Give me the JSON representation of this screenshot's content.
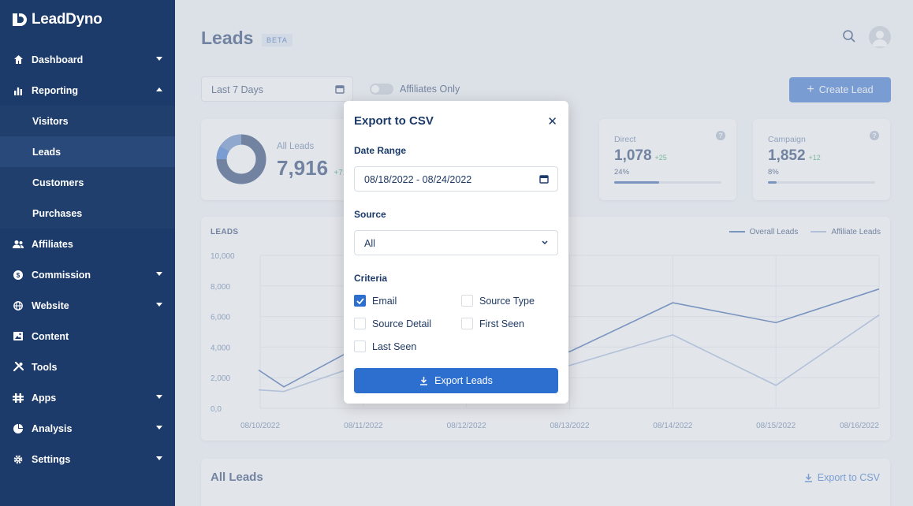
{
  "app": {
    "name": "LeadDyno"
  },
  "sidebar": {
    "items": [
      {
        "label": "Dashboard",
        "icon": "home-icon"
      },
      {
        "label": "Reporting",
        "icon": "bar-chart-icon"
      },
      {
        "label": "Affiliates",
        "icon": "users-icon"
      },
      {
        "label": "Commission",
        "icon": "dollar-icon"
      },
      {
        "label": "Website",
        "icon": "globe-icon"
      },
      {
        "label": "Content",
        "icon": "image-icon"
      },
      {
        "label": "Tools",
        "icon": "tools-icon"
      },
      {
        "label": "Apps",
        "icon": "apps-icon"
      },
      {
        "label": "Analysis",
        "icon": "pie-chart-icon"
      },
      {
        "label": "Settings",
        "icon": "gear-icon"
      }
    ],
    "reporting_sub": [
      "Visitors",
      "Leads",
      "Customers",
      "Purchases"
    ]
  },
  "header": {
    "title": "Leads",
    "badge": "BETA"
  },
  "filters": {
    "date_range": "Last 7 Days",
    "affiliates_only": "Affiliates Only",
    "create_button": "Create Lead"
  },
  "stats": {
    "all_leads": {
      "label": "All Leads",
      "value": "7,916",
      "delta": "+7:"
    },
    "direct": {
      "label": "Direct",
      "value": "1,078",
      "delta": "+25",
      "pct": "24%",
      "fill": 0.42
    },
    "campaign": {
      "label": "Campaign",
      "value": "1,852",
      "delta": "+12",
      "pct": "8%",
      "fill": 0.08
    }
  },
  "chart": {
    "title": "LEADS",
    "legend": [
      "Overall Leads",
      "Affiliate Leads"
    ],
    "colors": {
      "overall": "#2d5ca8",
      "affiliate": "#9fb6dc"
    }
  },
  "chart_data": {
    "type": "line",
    "x": [
      "08/10/2022",
      "08/11/2022",
      "08/12/2022",
      "08/13/2022",
      "08/14/2022",
      "08/15/2022",
      "08/16/2022"
    ],
    "y_ticks": [
      "10,000",
      "8,000",
      "6,000",
      "4,000",
      "2,000",
      "0,0"
    ],
    "ylim": [
      0,
      10000
    ],
    "series": [
      {
        "name": "Overall Leads",
        "values": [
          1400,
          4200,
          3300,
          3700,
          6900,
          5600,
          7800
        ]
      },
      {
        "name": "Affiliate Leads",
        "values": [
          1100,
          2900,
          2600,
          2800,
          4800,
          1500,
          6100
        ]
      }
    ],
    "series_note": [
      {
        "name": "Overall Leads",
        "start": 2500
      },
      {
        "name": "Affiliate Leads",
        "start": 1200
      }
    ]
  },
  "all_leads": {
    "title": "All Leads",
    "export_label": "Export to CSV"
  },
  "modal": {
    "title": "Export to CSV",
    "date_range_label": "Date Range",
    "date_range_value": "08/18/2022 - 08/24/2022",
    "source_label": "Source",
    "source_value": "All",
    "criteria_label": "Criteria",
    "criteria": [
      {
        "label": "Email",
        "checked": true
      },
      {
        "label": "Source Type",
        "checked": false
      },
      {
        "label": "Source Detail",
        "checked": false
      },
      {
        "label": "First Seen",
        "checked": false
      },
      {
        "label": "Last Seen",
        "checked": false
      }
    ],
    "export_button": "Export Leads"
  }
}
